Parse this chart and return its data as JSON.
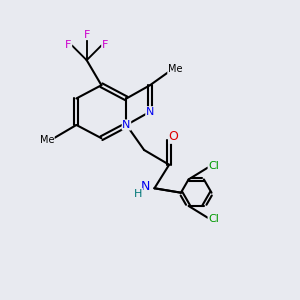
{
  "background_color": "#e8eaf0",
  "bond_color": "#000000",
  "atom_colors": {
    "N": "#0000ee",
    "O": "#dd0000",
    "F": "#cc00cc",
    "Cl": "#009900",
    "C": "#000000",
    "H": "#007777"
  },
  "bond_lw": 1.5,
  "font_size": 8,
  "figsize": [
    3.0,
    3.0
  ],
  "dpi": 100
}
